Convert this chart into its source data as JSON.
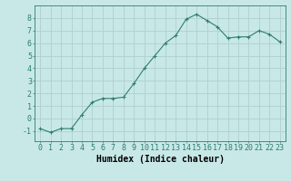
{
  "x": [
    0,
    1,
    2,
    3,
    4,
    5,
    6,
    7,
    8,
    9,
    10,
    11,
    12,
    13,
    14,
    15,
    16,
    17,
    18,
    19,
    20,
    21,
    22,
    23
  ],
  "y": [
    -0.8,
    -1.1,
    -0.8,
    -0.8,
    0.3,
    1.3,
    1.6,
    1.6,
    1.7,
    2.8,
    4.0,
    5.0,
    6.0,
    6.6,
    7.9,
    8.3,
    7.8,
    7.3,
    6.4,
    6.5,
    6.5,
    7.0,
    6.7,
    6.1
  ],
  "line_color": "#2e7d6e",
  "marker": "+",
  "bg_color": "#c8e8e8",
  "grid_color": "#b0d0d0",
  "xlabel": "Humidex (Indice chaleur)",
  "ylim": [
    -1.8,
    9.0
  ],
  "xlim": [
    -0.5,
    23.5
  ],
  "yticks": [
    -1,
    0,
    1,
    2,
    3,
    4,
    5,
    6,
    7,
    8
  ],
  "xticks": [
    0,
    1,
    2,
    3,
    4,
    5,
    6,
    7,
    8,
    9,
    10,
    11,
    12,
    13,
    14,
    15,
    16,
    17,
    18,
    19,
    20,
    21,
    22,
    23
  ],
  "xlabel_fontsize": 7,
  "tick_fontsize": 6,
  "line_width": 0.8,
  "marker_size": 3
}
